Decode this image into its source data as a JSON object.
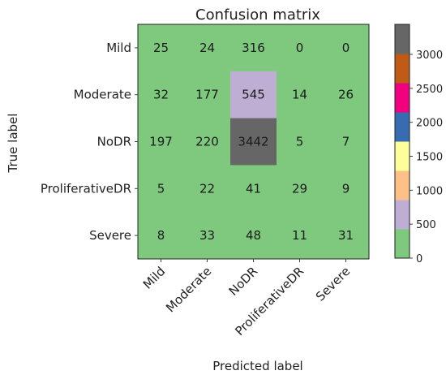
{
  "chart_data": {
    "type": "heatmap",
    "title": "Confusion matrix",
    "xlabel": "Predicted label",
    "ylabel": "True label",
    "x_categories": [
      "Mild",
      "Moderate",
      "NoDR",
      "ProliferativeDR",
      "Severe"
    ],
    "y_categories": [
      "Mild",
      "Moderate",
      "NoDR",
      "ProliferativeDR",
      "Severe"
    ],
    "values": [
      [
        25,
        24,
        316,
        0,
        0
      ],
      [
        32,
        177,
        545,
        14,
        26
      ],
      [
        197,
        220,
        3442,
        5,
        7
      ],
      [
        5,
        22,
        41,
        29,
        9
      ],
      [
        8,
        33,
        48,
        11,
        31
      ]
    ],
    "colorbar": {
      "min": 0,
      "max": 3442,
      "ticks": [
        0,
        500,
        1000,
        1500,
        2000,
        2500,
        3000
      ],
      "colormap": [
        "#7fc97f",
        "#beaed4",
        "#fdc086",
        "#ffff99",
        "#386cb0",
        "#f0027f",
        "#bf5b17",
        "#666666"
      ]
    },
    "grid": false
  }
}
